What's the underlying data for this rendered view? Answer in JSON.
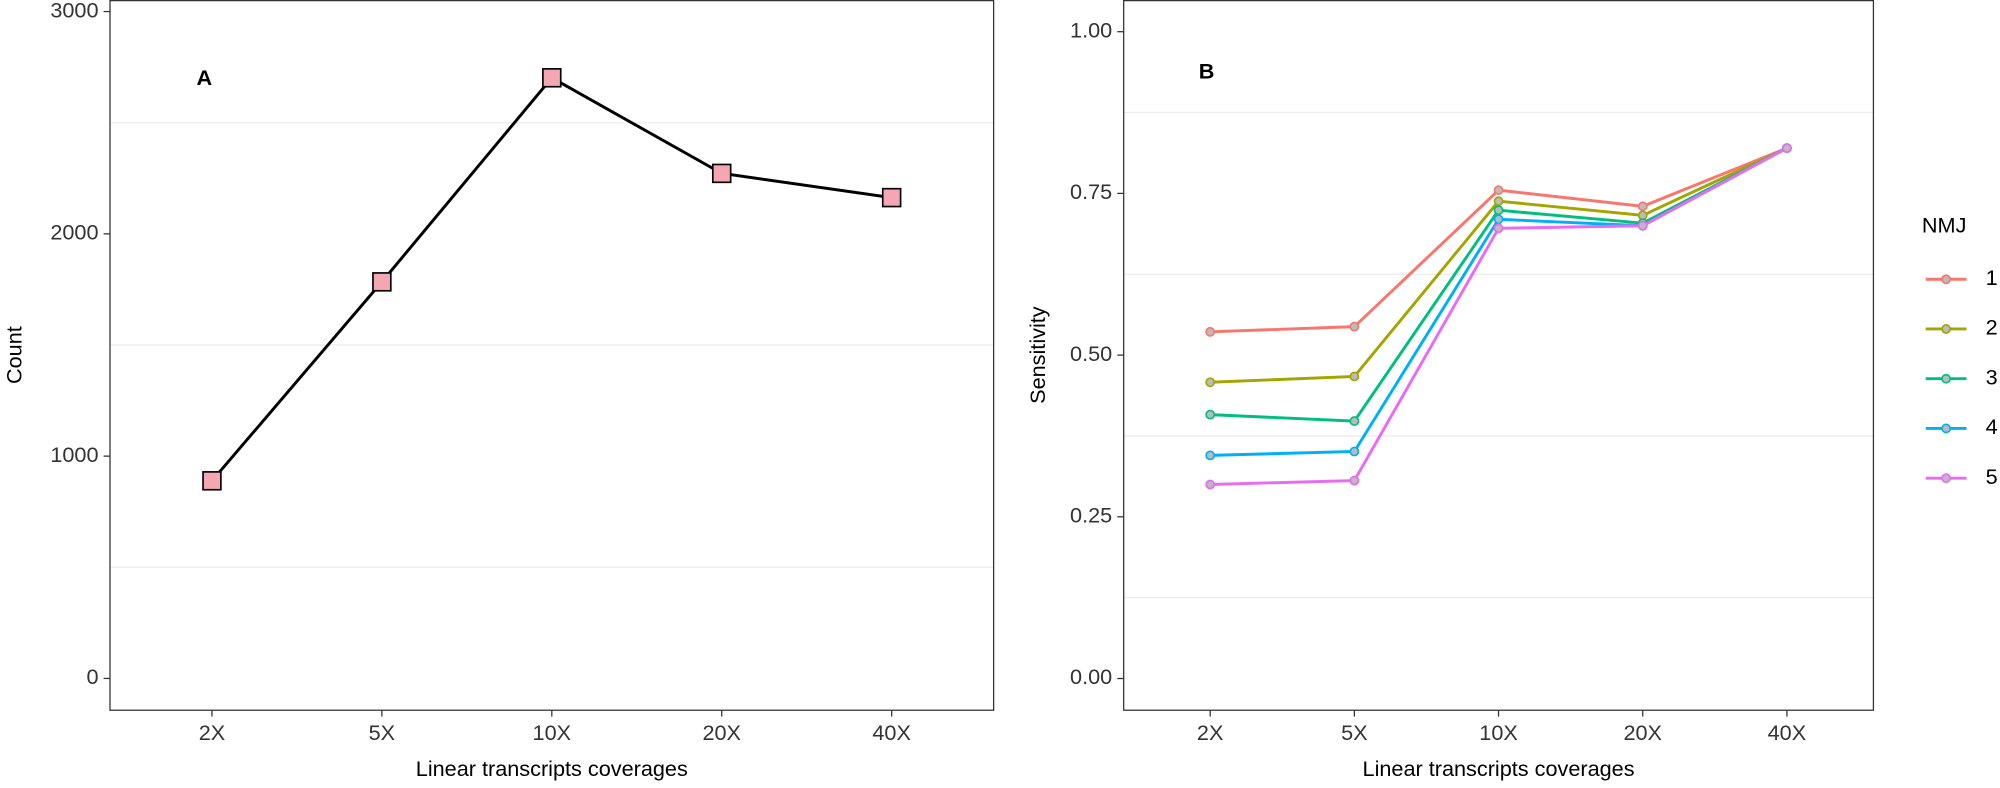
{
  "chart_data": [
    {
      "type": "line",
      "title": "A",
      "x_label": "Linear transcripts coverages",
      "y_label": "Count",
      "categories": [
        "2X",
        "5X",
        "10X",
        "20X",
        "40X"
      ],
      "series": [
        {
          "color": "#000000",
          "marker_fill": "#f4a7b3",
          "values": [
            889,
            1784,
            2702,
            2272,
            2163
          ]
        }
      ],
      "ylim": [
        -143,
        3052
      ],
      "yticks": [
        0,
        1000,
        2000,
        3000
      ],
      "minor_grid": [
        500,
        1500,
        2500
      ]
    },
    {
      "type": "line",
      "title": "B",
      "x_label": "Linear transcripts coverages",
      "y_label": "Sensitivity",
      "categories": [
        "2X",
        "5X",
        "10X",
        "20X",
        "40X"
      ],
      "legend_title": "NMJ",
      "series": [
        {
          "name": "1",
          "color": "#F8766D",
          "values": [
            0.536,
            0.544,
            0.755,
            0.73,
            0.82
          ]
        },
        {
          "name": "2",
          "color": "#A3A500",
          "values": [
            0.458,
            0.467,
            0.738,
            0.716,
            0.82
          ]
        },
        {
          "name": "3",
          "color": "#00BF7D",
          "values": [
            0.408,
            0.398,
            0.724,
            0.704,
            0.82
          ]
        },
        {
          "name": "4",
          "color": "#00B0F6",
          "values": [
            0.345,
            0.351,
            0.71,
            0.7,
            0.82
          ]
        },
        {
          "name": "5",
          "color": "#E76BF3",
          "values": [
            0.3,
            0.306,
            0.696,
            0.7,
            0.82
          ]
        }
      ],
      "ylim": [
        -0.049,
        1.049
      ],
      "yticks": [
        {
          "value": 0,
          "label": "0.00"
        },
        {
          "value": 0.25,
          "label": "0.25"
        },
        {
          "value": 0.5,
          "label": "0.50"
        },
        {
          "value": 0.75,
          "label": "0.75"
        },
        {
          "value": 1,
          "label": "1.00"
        }
      ],
      "minor_grid": [
        0.125,
        0.375,
        0.625,
        0.875
      ]
    }
  ]
}
